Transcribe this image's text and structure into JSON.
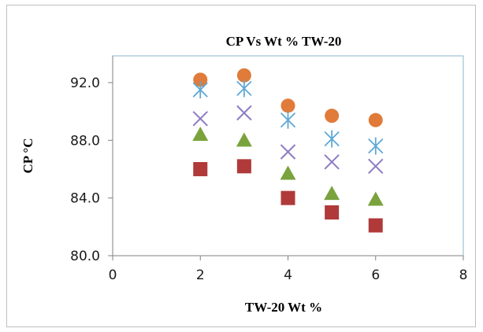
{
  "chart_data": {
    "type": "scatter",
    "title": "CP Vs Wt % TW-20",
    "xlabel": "TW-20 Wt %",
    "ylabel": "CP °C",
    "xlim": [
      0,
      8
    ],
    "ylim": [
      80,
      94
    ],
    "xticks": [
      "0",
      "2",
      "4",
      "6",
      "8"
    ],
    "yticks": [
      "80.0",
      "84.0",
      "88.0",
      "92.0"
    ],
    "grid": false,
    "legend": "none",
    "series": [
      {
        "marker": "circle",
        "color": "#e07b39",
        "points": [
          [
            2,
            92.2
          ],
          [
            3,
            92.5
          ],
          [
            4,
            90.4
          ],
          [
            5,
            89.7
          ],
          [
            6,
            89.4
          ]
        ]
      },
      {
        "marker": "asterisk",
        "color": "#5da8d6",
        "points": [
          [
            2,
            91.5
          ],
          [
            3,
            91.6
          ],
          [
            4,
            89.4
          ],
          [
            5,
            88.1
          ],
          [
            6,
            87.6
          ]
        ]
      },
      {
        "marker": "x",
        "color": "#8e7cc3",
        "points": [
          [
            2,
            89.5
          ],
          [
            3,
            89.9
          ],
          [
            4,
            87.2
          ],
          [
            5,
            86.5
          ],
          [
            6,
            86.2
          ]
        ]
      },
      {
        "marker": "triangle",
        "color": "#7aa33e",
        "points": [
          [
            2,
            88.4
          ],
          [
            3,
            88.0
          ],
          [
            4,
            85.7
          ],
          [
            5,
            84.3
          ],
          [
            6,
            83.9
          ]
        ]
      },
      {
        "marker": "square",
        "color": "#b03a3a",
        "points": [
          [
            2,
            86.0
          ],
          [
            3,
            86.2
          ],
          [
            4,
            84.0
          ],
          [
            5,
            83.0
          ],
          [
            6,
            82.1
          ]
        ]
      }
    ]
  }
}
